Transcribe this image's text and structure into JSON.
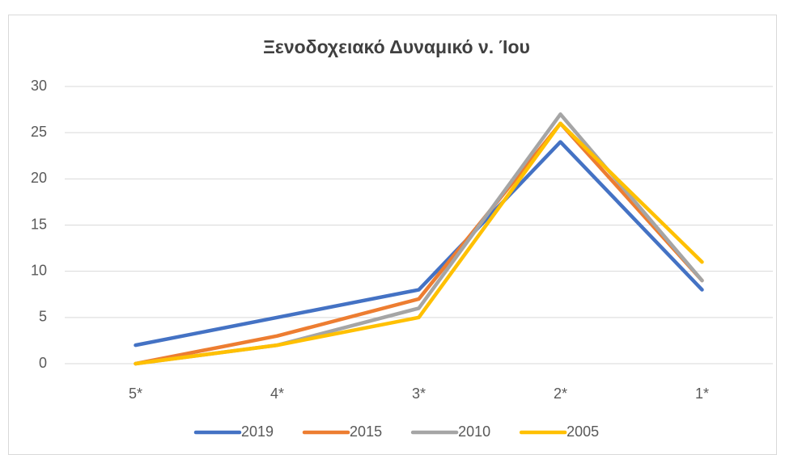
{
  "chart_data": {
    "type": "line",
    "title": "Ξενοδοχειακό Δυναμικό ν. Ίου",
    "categories": [
      "5*",
      "4*",
      "3*",
      "2*",
      "1*"
    ],
    "series": [
      {
        "name": "2019",
        "color": "#4472c4",
        "values": [
          2,
          5,
          8,
          24,
          8
        ]
      },
      {
        "name": "2015",
        "color": "#ed7d31",
        "values": [
          0,
          3,
          7,
          26,
          9
        ]
      },
      {
        "name": "2010",
        "color": "#a5a5a5",
        "values": [
          0,
          2,
          6,
          27,
          9
        ]
      },
      {
        "name": "2005",
        "color": "#ffc000",
        "values": [
          0,
          2,
          5,
          26,
          11
        ]
      }
    ],
    "ylim": [
      0,
      30
    ],
    "yticks": [
      0,
      5,
      10,
      15,
      20,
      25,
      30
    ],
    "grid": true,
    "legend": "bottom"
  }
}
